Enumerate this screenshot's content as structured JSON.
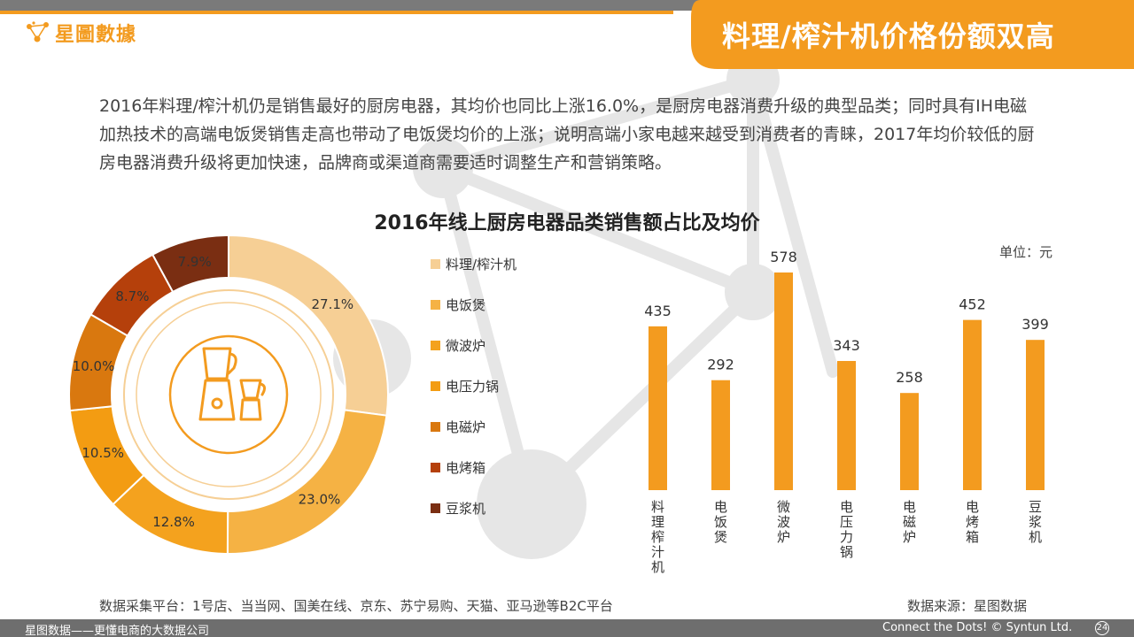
{
  "brand": {
    "logo_text": "星圖數據",
    "accent_color": "#f39b1f"
  },
  "header": {
    "title": "料理/榨汁机价格份额双高"
  },
  "intro": {
    "paragraph": "2016年料理/榨汁机仍是销售最好的厨房电器，其均价也同比上涨16.0%，是厨房电器消费升级的典型品类；同时具有IH电磁加热技术的高端电饭煲销售走高也带动了电饭煲均价的上涨；说明高端小家电越来越受到消费者的青睐，2017年均价较低的厨房电器消费升级将更加快速，品牌商或渠道商需要适时调整生产和营销策略。"
  },
  "chart_data": [
    {
      "type": "pie",
      "variant": "donut",
      "title": "2016年线上厨房电器品类销售额占比及均价",
      "categories": [
        "料理/榨汁机",
        "电饭煲",
        "微波炉",
        "电压力锅",
        "电磁炉",
        "电烤箱",
        "豆浆机"
      ],
      "values": [
        27.1,
        23.0,
        12.8,
        10.5,
        10.0,
        8.7,
        7.9
      ],
      "value_labels": [
        "27.1%",
        "23.0%",
        "12.8%",
        "10.5%",
        "10.0%",
        "8.7%",
        "7.9%"
      ],
      "colors": [
        "#f6cf95",
        "#f5b244",
        "#f4a21e",
        "#f39c12",
        "#d9780f",
        "#b5400b",
        "#7a2e12"
      ],
      "center_icon": "blender-icon",
      "legend_position": "right"
    },
    {
      "type": "bar",
      "categories": [
        "料理榨汁机",
        "电饭煲",
        "微波炉",
        "电压力锅",
        "电磁炉",
        "电烤箱",
        "豆浆机"
      ],
      "values": [
        435,
        292,
        578,
        343,
        258,
        452,
        399
      ],
      "unit_label": "单位：元",
      "bar_color": "#f39b1f",
      "grid": false
    }
  ],
  "footer": {
    "platform": "数据采集平台：1号店、当当网、国美在线、京东、苏宁易购、天猫、亚马逊等B2C平台",
    "source": "数据来源：星图数据"
  },
  "bottom_bar": {
    "left": "星图数据——更懂电商的大数据公司",
    "right": "Connect the Dots! © Syntun Ltd.",
    "page": "24"
  }
}
